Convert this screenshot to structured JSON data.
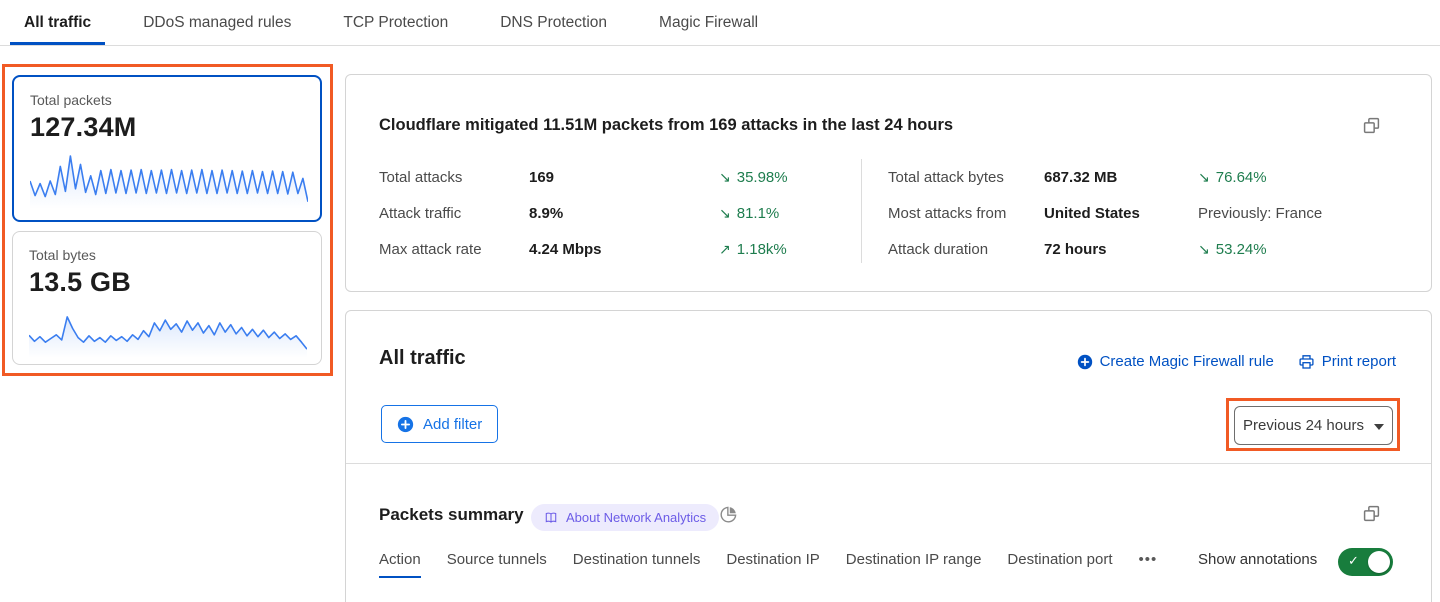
{
  "colors": {
    "accent_blue": "#0051c3",
    "filter_blue": "#1673e6",
    "delta_green": "#1e7d4e",
    "highlight_orange": "#f15a24",
    "spark_blue": "#3b7ef0",
    "badge_purple": "#6c5ce7",
    "toggle_green": "#187d3d"
  },
  "tabs": {
    "items": [
      {
        "label": "All traffic",
        "active": true
      },
      {
        "label": "DDoS managed rules",
        "active": false
      },
      {
        "label": "TCP Protection",
        "active": false
      },
      {
        "label": "DNS Protection",
        "active": false
      },
      {
        "label": "Magic Firewall",
        "active": false
      }
    ]
  },
  "cards": {
    "packets": {
      "label": "Total packets",
      "value": "127.34M"
    },
    "bytes": {
      "label": "Total bytes",
      "value": "13.5 GB"
    }
  },
  "chart_data": [
    {
      "type": "line",
      "title": "Total packets sparkline (last 24 hours)",
      "values": [
        50,
        22,
        45,
        20,
        50,
        24,
        78,
        30,
        98,
        35,
        82,
        28,
        60,
        24,
        70,
        26,
        72,
        27,
        70,
        26,
        71,
        27,
        72,
        26,
        70,
        27,
        71,
        26,
        72,
        27,
        70,
        26,
        71,
        27,
        72,
        26,
        70,
        26,
        71,
        27,
        70,
        26,
        69,
        26,
        70,
        27,
        68,
        26,
        69,
        26,
        68,
        25,
        67,
        26,
        55,
        10
      ]
    },
    {
      "type": "line",
      "title": "Total bytes sparkline (last 24 hours)",
      "values": [
        45,
        32,
        42,
        30,
        38,
        46,
        35,
        85,
        60,
        40,
        30,
        44,
        32,
        40,
        30,
        44,
        34,
        42,
        32,
        46,
        36,
        55,
        42,
        72,
        55,
        78,
        58,
        70,
        52,
        76,
        56,
        72,
        50,
        66,
        46,
        72,
        52,
        68,
        48,
        62,
        44,
        58,
        42,
        56,
        40,
        52,
        38,
        48,
        36,
        44,
        30,
        15
      ]
    }
  ],
  "summary": {
    "title": "Cloudflare mitigated 11.51M packets from 169 attacks in the last 24 hours",
    "stats_left": [
      {
        "label": "Total attacks",
        "value": "169",
        "arrow": "↘",
        "delta": "35.98%"
      },
      {
        "label": "Attack traffic",
        "value": "8.9%",
        "arrow": "↘",
        "delta": "81.1%"
      },
      {
        "label": "Max attack rate",
        "value": "4.24 Mbps",
        "arrow": "↗",
        "delta": "1.18k%"
      }
    ],
    "stats_right": [
      {
        "label": "Total attack bytes",
        "value": "687.32 MB",
        "arrow": "↘",
        "delta": "76.64%"
      },
      {
        "label": "Most attacks from",
        "value": "United States",
        "arrow": "",
        "delta": "Previously: France"
      },
      {
        "label": "Attack duration",
        "value": "72 hours",
        "arrow": "↘",
        "delta": "53.24%"
      }
    ]
  },
  "traffic": {
    "title": "All traffic",
    "create_rule_label": "Create Magic Firewall rule",
    "print_report_label": "Print report",
    "add_filter_label": "Add filter",
    "time_range_label": "Previous 24 hours"
  },
  "packets_summary": {
    "title": "Packets summary",
    "badge_label": "About Network Analytics",
    "subtabs": [
      {
        "label": "Action",
        "active": true
      },
      {
        "label": "Source tunnels",
        "active": false
      },
      {
        "label": "Destination tunnels",
        "active": false
      },
      {
        "label": "Destination IP",
        "active": false
      },
      {
        "label": "Destination IP range",
        "active": false
      },
      {
        "label": "Destination port",
        "active": false
      },
      {
        "label": "•••",
        "active": false
      }
    ],
    "show_annotations_label": "Show annotations",
    "annotations_on": true,
    "toggle_check": "✓"
  }
}
